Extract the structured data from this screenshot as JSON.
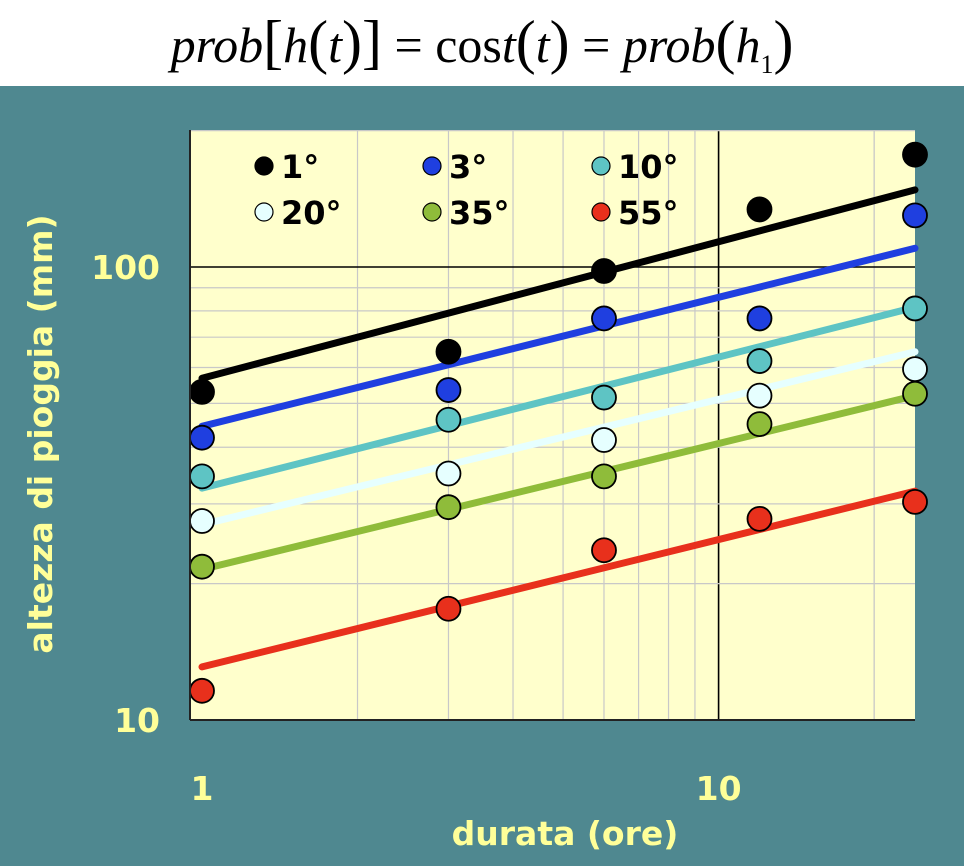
{
  "formula": {
    "prob1": "prob",
    "h": "h",
    "t1": "t",
    "cos": "cos",
    "t2": "t",
    "t3": "t",
    "prob2": "prob",
    "h1": "h",
    "sub1": "1"
  },
  "colors": {
    "background": "#4f8890",
    "plot_area": "#ffffcc",
    "axis_text": "#ffff99",
    "grid": "#c8c8c8",
    "major_grid": "#000000"
  },
  "chart_data": {
    "type": "scatter",
    "title": "",
    "xlabel": "durata (ore)",
    "ylabel": "altezza di pioggia (mm)",
    "x_scale": "log",
    "y_scale": "log",
    "xlim": [
      1,
      24
    ],
    "ylim": [
      10,
      200
    ],
    "x_ticks": [
      {
        "value": 1,
        "label": "1"
      },
      {
        "value": 10,
        "label": "10"
      }
    ],
    "y_ticks": [
      {
        "value": 10,
        "label": "10"
      },
      {
        "value": 100,
        "label": "100"
      }
    ],
    "grid": true,
    "legend_position": "top-left",
    "x": [
      1,
      3,
      6,
      12,
      24
    ],
    "series": [
      {
        "name": "1°",
        "color": "#000000",
        "points": [
          53,
          65,
          98,
          134,
          177
        ],
        "line": [
          [
            1,
            56.8
          ],
          [
            24,
            148
          ]
        ]
      },
      {
        "name": "3°",
        "color": "#1f3fe0",
        "points": [
          42,
          53.5,
          77,
          77,
          130
        ],
        "line": [
          [
            1,
            44.5
          ],
          [
            24,
            110
          ]
        ]
      },
      {
        "name": "10°",
        "color": "#5ec4c4",
        "points": [
          34.5,
          46,
          51.5,
          62,
          81
        ],
        "line": [
          [
            1,
            32.5
          ],
          [
            24,
            81.5
          ]
        ]
      },
      {
        "name": "20°",
        "color": "#e6ffff",
        "points": [
          27.5,
          35,
          41.5,
          52,
          59.5
        ],
        "line": [
          [
            1,
            27
          ],
          [
            24,
            65
          ]
        ]
      },
      {
        "name": "35°",
        "color": "#8fbc3a",
        "points": [
          21.8,
          29.5,
          34.5,
          45,
          52.5
        ],
        "line": [
          [
            1,
            21.5
          ],
          [
            24,
            52
          ]
        ]
      },
      {
        "name": "55°",
        "color": "#e8301c",
        "points": [
          11.6,
          17.6,
          23.7,
          27.8,
          30.3
        ],
        "line": [
          [
            1,
            13.1
          ],
          [
            24,
            32
          ]
        ]
      }
    ]
  }
}
